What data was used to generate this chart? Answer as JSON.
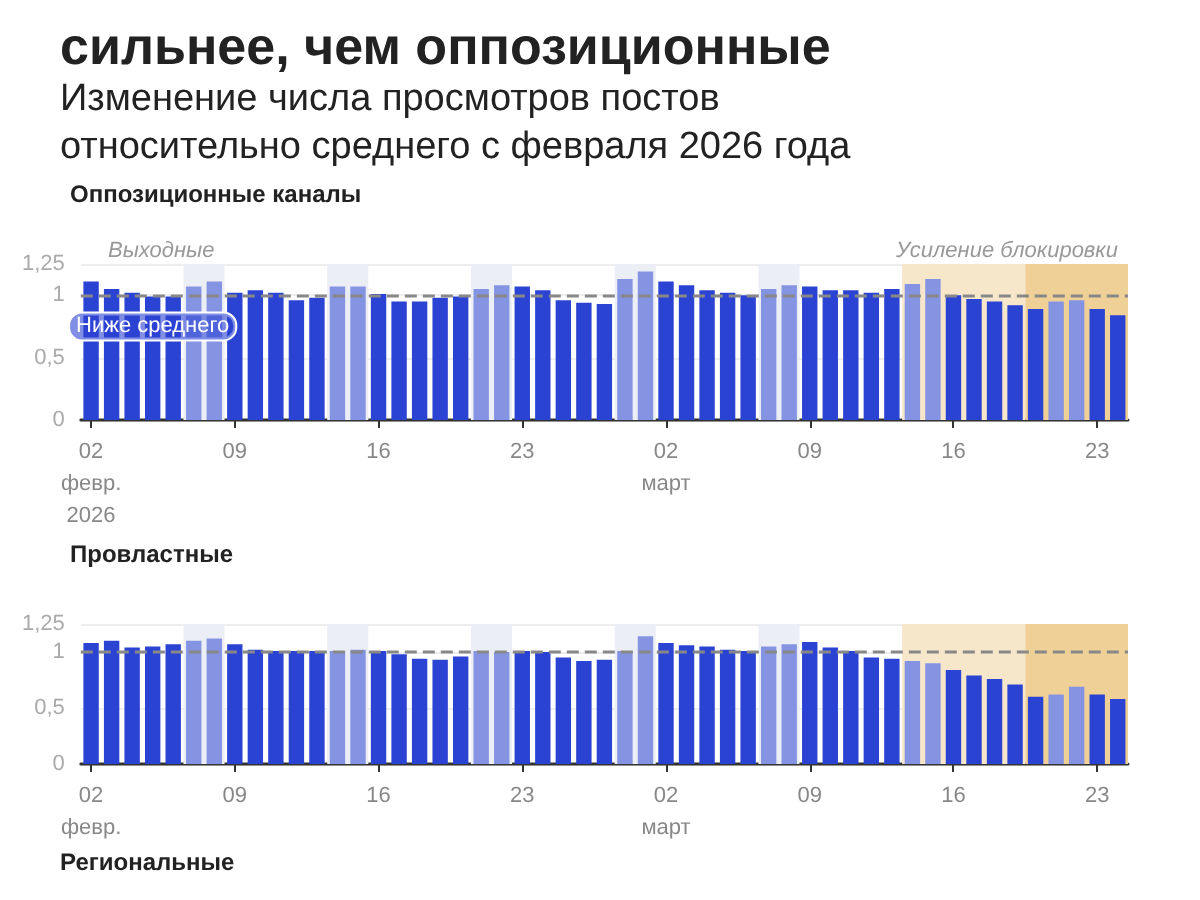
{
  "chart_data": [
    {
      "type": "other",
      "title": "сильнее, чем оппозиционные",
      "subtitle": "Изменение числа просмотров постов\nотносительно среднего с февраля 2026 года"
    },
    {
      "type": "bar",
      "title": "Оппозиционные каналы",
      "x": [
        "2026-02-02",
        "2026-02-03",
        "2026-02-04",
        "2026-02-05",
        "2026-02-06",
        "2026-02-07",
        "2026-02-08",
        "2026-02-09",
        "2026-02-10",
        "2026-02-11",
        "2026-02-12",
        "2026-02-13",
        "2026-02-14",
        "2026-02-15",
        "2026-02-16",
        "2026-02-17",
        "2026-02-18",
        "2026-02-19",
        "2026-02-20",
        "2026-02-21",
        "2026-02-22",
        "2026-02-23",
        "2026-02-24",
        "2026-02-25",
        "2026-02-26",
        "2026-02-27",
        "2026-02-28",
        "2026-03-01",
        "2026-03-02",
        "2026-03-03",
        "2026-03-04",
        "2026-03-05",
        "2026-03-06",
        "2026-03-07",
        "2026-03-08",
        "2026-03-09",
        "2026-03-10",
        "2026-03-11",
        "2026-03-12",
        "2026-03-13",
        "2026-03-14",
        "2026-03-15",
        "2026-03-16",
        "2026-03-17",
        "2026-03-18",
        "2026-03-19",
        "2026-03-20",
        "2026-03-21",
        "2026-03-22",
        "2026-03-23",
        "2026-03-24"
      ],
      "values": [
        1.11,
        1.05,
        1.02,
        0.99,
        0.99,
        1.07,
        1.11,
        1.02,
        1.04,
        1.02,
        0.96,
        0.98,
        1.07,
        1.07,
        1.01,
        0.95,
        0.95,
        0.98,
        0.99,
        1.05,
        1.08,
        1.07,
        1.04,
        0.96,
        0.94,
        0.93,
        1.13,
        1.19,
        1.11,
        1.08,
        1.04,
        1.02,
        1.0,
        1.05,
        1.08,
        1.07,
        1.04,
        1.04,
        1.02,
        1.05,
        1.09,
        1.13,
        1.0,
        0.97,
        0.95,
        0.92,
        0.89,
        0.95,
        0.96,
        0.89,
        0.84
      ],
      "colors": [
        "#2b43d3",
        "#2b43d3",
        "#2b43d3",
        "#2b43d3",
        "#2b43d3",
        "#8593e3",
        "#8593e3",
        "#2b43d3",
        "#2b43d3",
        "#2b43d3",
        "#2b43d3",
        "#2b43d3",
        "#8593e3",
        "#8593e3",
        "#2b43d3",
        "#2b43d3",
        "#2b43d3",
        "#2b43d3",
        "#2b43d3",
        "#8593e3",
        "#8593e3",
        "#2b43d3",
        "#2b43d3",
        "#2b43d3",
        "#2b43d3",
        "#2b43d3",
        "#8593e3",
        "#8593e3",
        "#2b43d3",
        "#2b43d3",
        "#2b43d3",
        "#2b43d3",
        "#2b43d3",
        "#8593e3",
        "#8593e3",
        "#2b43d3",
        "#2b43d3",
        "#2b43d3",
        "#2b43d3",
        "#2b43d3",
        "#8593e3",
        "#8593e3",
        "#2b43d3",
        "#2b43d3",
        "#2b43d3",
        "#2b43d3",
        "#2b43d3",
        "#8593e3",
        "#8593e3",
        "#2b43d3",
        "#2b43d3"
      ],
      "xlim": [
        "2026-02-01T12:00",
        "2026-03-24T12:00"
      ],
      "xticks": [
        {
          "value": "2026-02-02",
          "label": "02\nфевр.\n2026"
        },
        {
          "value": "2026-02-09",
          "label": "09"
        },
        {
          "value": "2026-02-16",
          "label": "16"
        },
        {
          "value": "2026-02-23",
          "label": "23"
        },
        {
          "value": "2026-03-02",
          "label": "02\nмарт"
        },
        {
          "value": "2026-03-09",
          "label": "09"
        },
        {
          "value": "2026-03-16",
          "label": "16"
        },
        {
          "value": "2026-03-23",
          "label": "23"
        }
      ],
      "ylim": [
        0,
        1.25
      ],
      "yticks": [
        {
          "value": 0,
          "label": "0"
        },
        {
          "value": 0.5,
          "label": "0,5"
        },
        {
          "value": 1,
          "label": "1"
        },
        {
          "value": 1.25,
          "label": "1,25"
        }
      ],
      "grid": "y",
      "ref_lines": [
        {
          "axis": "y",
          "value": 1,
          "color": "#888888",
          "line_style": "dashed"
        }
      ],
      "bands": [
        {
          "axis": "x",
          "from": "2026-02-06T12:00",
          "to": "2026-02-08T12:00",
          "label": "Выходные",
          "color": "#eceef5"
        },
        {
          "axis": "x",
          "from": "2026-02-13T12:00",
          "to": "2026-02-15T12:00",
          "color": "#eceef5"
        },
        {
          "axis": "x",
          "from": "2026-02-20T12:00",
          "to": "2026-02-22T12:00",
          "color": "#eceef5"
        },
        {
          "axis": "x",
          "from": "2026-02-27T12:00",
          "to": "2026-03-01T12:00",
          "color": "#eceef5"
        },
        {
          "axis": "x",
          "from": "2026-03-06T12:00",
          "to": "2026-03-08T12:00",
          "color": "#eceef5"
        },
        {
          "axis": "x",
          "from": "2026-03-13T12:00",
          "to": "2026-03-19T12:00",
          "color": "#f6e7ca"
        },
        {
          "axis": "x",
          "from": "2026-03-19T12:00",
          "to": "2026-03-24T12:00",
          "label": "Усиление блокировки",
          "color": "#efd096"
        }
      ],
      "annotations": [
        {
          "text": "Ниже среднего",
          "x": "2026-02-05",
          "y": 0.75
        }
      ]
    },
    {
      "type": "bar",
      "title": "Провластные",
      "x": [
        "2026-02-02",
        "2026-02-03",
        "2026-02-04",
        "2026-02-05",
        "2026-02-06",
        "2026-02-07",
        "2026-02-08",
        "2026-02-09",
        "2026-02-10",
        "2026-02-11",
        "2026-02-12",
        "2026-02-13",
        "2026-02-14",
        "2026-02-15",
        "2026-02-16",
        "2026-02-17",
        "2026-02-18",
        "2026-02-19",
        "2026-02-20",
        "2026-02-21",
        "2026-02-22",
        "2026-02-23",
        "2026-02-24",
        "2026-02-25",
        "2026-02-26",
        "2026-02-27",
        "2026-02-28",
        "2026-03-01",
        "2026-03-02",
        "2026-03-03",
        "2026-03-04",
        "2026-03-05",
        "2026-03-06",
        "2026-03-07",
        "2026-03-08",
        "2026-03-09",
        "2026-03-10",
        "2026-03-11",
        "2026-03-12",
        "2026-03-13",
        "2026-03-14",
        "2026-03-15",
        "2026-03-16",
        "2026-03-17",
        "2026-03-18",
        "2026-03-19",
        "2026-03-20",
        "2026-03-21",
        "2026-03-22",
        "2026-03-23",
        "2026-03-24"
      ],
      "values": [
        1.08,
        1.1,
        1.04,
        1.05,
        1.07,
        1.1,
        1.12,
        1.07,
        1.02,
        1.01,
        1.01,
        1.01,
        1.01,
        1.02,
        1.01,
        0.98,
        0.94,
        0.93,
        0.96,
        1.01,
        1.0,
        1.01,
        1.0,
        0.95,
        0.92,
        0.93,
        1.01,
        1.14,
        1.08,
        1.06,
        1.05,
        1.02,
        1.01,
        1.05,
        1.07,
        1.09,
        1.04,
        1.01,
        0.95,
        0.94,
        0.92,
        0.9,
        0.84,
        0.79,
        0.76,
        0.71,
        0.6,
        0.62,
        0.69,
        0.62,
        0.58
      ],
      "colors": [
        "#2b43d3",
        "#2b43d3",
        "#2b43d3",
        "#2b43d3",
        "#2b43d3",
        "#8593e3",
        "#8593e3",
        "#2b43d3",
        "#2b43d3",
        "#2b43d3",
        "#2b43d3",
        "#2b43d3",
        "#8593e3",
        "#8593e3",
        "#2b43d3",
        "#2b43d3",
        "#2b43d3",
        "#2b43d3",
        "#2b43d3",
        "#8593e3",
        "#8593e3",
        "#2b43d3",
        "#2b43d3",
        "#2b43d3",
        "#2b43d3",
        "#2b43d3",
        "#8593e3",
        "#8593e3",
        "#2b43d3",
        "#2b43d3",
        "#2b43d3",
        "#2b43d3",
        "#2b43d3",
        "#8593e3",
        "#8593e3",
        "#2b43d3",
        "#2b43d3",
        "#2b43d3",
        "#2b43d3",
        "#2b43d3",
        "#8593e3",
        "#8593e3",
        "#2b43d3",
        "#2b43d3",
        "#2b43d3",
        "#2b43d3",
        "#2b43d3",
        "#8593e3",
        "#8593e3",
        "#2b43d3",
        "#2b43d3"
      ],
      "xlim": [
        "2026-02-01T12:00",
        "2026-03-24T12:00"
      ],
      "xticks": [
        {
          "value": "2026-02-02",
          "label": "02\nфевр."
        },
        {
          "value": "2026-02-09",
          "label": "09"
        },
        {
          "value": "2026-02-16",
          "label": "16"
        },
        {
          "value": "2026-02-23",
          "label": "23"
        },
        {
          "value": "2026-03-02",
          "label": "02\nмарт"
        },
        {
          "value": "2026-03-09",
          "label": "09"
        },
        {
          "value": "2026-03-16",
          "label": "16"
        },
        {
          "value": "2026-03-23",
          "label": "23"
        }
      ],
      "ylim": [
        0,
        1.25
      ],
      "yticks": [
        {
          "value": 0,
          "label": "0"
        },
        {
          "value": 0.5,
          "label": "0,5"
        },
        {
          "value": 1,
          "label": "1"
        },
        {
          "value": 1.25,
          "label": "1,25"
        }
      ],
      "grid": "y",
      "ref_lines": [
        {
          "axis": "y",
          "value": 1,
          "color": "#888888",
          "line_style": "dashed"
        }
      ],
      "bands": [
        {
          "axis": "x",
          "from": "2026-02-06T12:00",
          "to": "2026-02-08T12:00",
          "color": "#eceef5"
        },
        {
          "axis": "x",
          "from": "2026-02-13T12:00",
          "to": "2026-02-15T12:00",
          "color": "#eceef5"
        },
        {
          "axis": "x",
          "from": "2026-02-20T12:00",
          "to": "2026-02-22T12:00",
          "color": "#eceef5"
        },
        {
          "axis": "x",
          "from": "2026-02-27T12:00",
          "to": "2026-03-01T12:00",
          "color": "#eceef5"
        },
        {
          "axis": "x",
          "from": "2026-03-06T12:00",
          "to": "2026-03-08T12:00",
          "color": "#eceef5"
        },
        {
          "axis": "x",
          "from": "2026-03-13T12:00",
          "to": "2026-03-19T12:00",
          "color": "#f6e7ca"
        },
        {
          "axis": "x",
          "from": "2026-03-19T12:00",
          "to": "2026-03-24T12:00",
          "color": "#efd096"
        }
      ]
    },
    {
      "type": "other",
      "title": "Региональные"
    }
  ]
}
